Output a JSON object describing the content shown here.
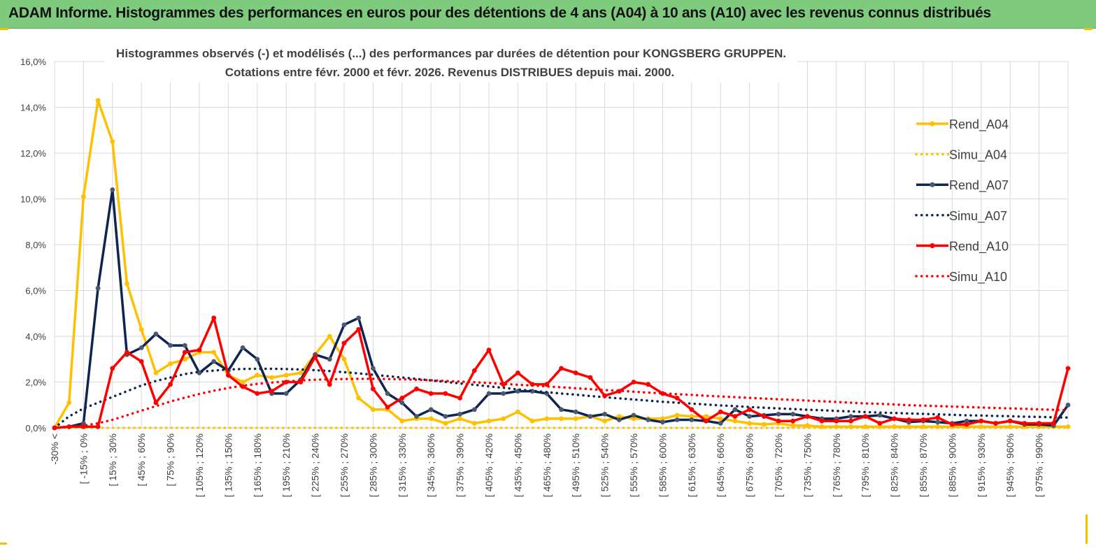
{
  "banner": {
    "title": "ADAM Informe. Histogrammes des performances en euros pour des détentions de 4 ans (A04) à 10 ans (A10) avec les revenus connus distribués"
  },
  "chart_data": {
    "type": "line",
    "title_line1": "Histogrammes observés (-) et modélisés (...) des performances par durées de détention pour KONGSBERG GRUPPEN.",
    "title_line2": "Cotations entre févr. 2000 et févr. 2026. Revenus DISTRIBUES depuis mai. 2000.",
    "xlabel": "",
    "ylabel": "",
    "ylim": [
      0,
      16
    ],
    "y_ticks": [
      "0,0%",
      "2,0%",
      "4,0%",
      "6,0%",
      "8,0%",
      "10,0%",
      "12,0%",
      "14,0%",
      "16,0%"
    ],
    "categories": [
      "-30% <",
      "[ -30% ; -15% [",
      "[ -15% ; 0% [",
      "[ 0% ; 15% [",
      "[ 15% ; 30% [",
      "[ 30% ; 45% [",
      "[ 45% ; 60% [",
      "[ 60% ; 75% [",
      "[ 75% ; 90% [",
      "[ 90% ; 105% [",
      "[ 105% ; 120% [",
      "[ 120% ; 135% [",
      "[ 135% ; 150% [",
      "[ 150% ; 165% [",
      "[ 165% ; 180% [",
      "[ 180% ; 195% [",
      "[ 195% ; 210% [",
      "[ 210% ; 225% [",
      "[ 225% ; 240% [",
      "[ 240% ; 255% [",
      "[ 255% ; 270% [",
      "[ 270% ; 285% [",
      "[ 285% ; 300% [",
      "[ 300% ; 315% [",
      "[ 315% ; 330% [",
      "[ 330% ; 345% [",
      "[ 345% ; 360% [",
      "[ 360% ; 375% [",
      "[ 375% ; 390% [",
      "[ 390% ; 405% [",
      "[ 405% ; 420% [",
      "[ 420% ; 435% [",
      "[ 435% ; 450% [",
      "[ 450% ; 465% [",
      "[ 465% ; 480% [",
      "[ 480% ; 495% [",
      "[ 495% ; 510% [",
      "[ 510% ; 525% [",
      "[ 525% ; 540% [",
      "[ 540% ; 555% [",
      "[ 555% ; 570% [",
      "[ 570% ; 585% [",
      "[ 585% ; 600% [",
      "[ 600% ; 615% [",
      "[ 615% ; 630% [",
      "[ 630% ; 645% [",
      "[ 645% ; 660% [",
      "[ 660% ; 675% [",
      "[ 675% ; 690% [",
      "[ 690% ; 705% [",
      "[ 705% ; 720% [",
      "[ 720% ; 735% [",
      "[ 735% ; 750% [",
      "[ 750% ; 765% [",
      "[ 765% ; 780% [",
      "[ 780% ; 795% [",
      "[ 795% ; 810% [",
      "[ 810% ; 825% [",
      "[ 825% ; 840% [",
      "[ 840% ; 855% [",
      "[ 855% ; 870% [",
      "[ 870% ; 885% [",
      "[ 885% ; 900% [",
      "[ 900% ; 915% [",
      "[ 915% ; 930% [",
      "[ 930% ; 945% [",
      "[ 945% ; 960% [",
      "[ 960% ; 975% [",
      "[ 975% ; 990% [",
      "[ 990% ; 1005% [",
      "> 1005%"
    ],
    "visible_tick_labels": [
      "-30% <",
      "[ -15% ; 0%",
      "[ 15% ; 30%",
      "[ 45% ; 60%",
      "[ 75% ; 90%",
      "[ 105% ; 120%",
      "[ 135% ; 150%",
      "[ 165% ; 180%",
      "[ 195% ; 210%",
      "[ 225% ; 240%",
      "[ 255% ; 270%",
      "[ 285% ; 300%",
      "[ 315% ; 330%",
      "[ 345% ; 360%",
      "[ 375% ; 390%",
      "[ 405% ; 420%",
      "[ 435% ; 450%",
      "[ 465% ; 480%",
      "[ 495% ; 510%",
      "[ 525% ; 540%",
      "[ 555% ; 570%",
      "[ 585% ; 600%",
      "[ 615% ; 630%",
      "[ 645% ; 660%",
      "[ 675% ; 690%",
      "[ 705% ; 720%",
      "[ 735% ; 750%",
      "[ 765% ; 780%",
      "[ 795% ; 810%",
      "[ 825% ; 840%",
      "[ 855% ; 870%",
      "[ 885% ; 900%",
      "[ 915% ; 930%",
      "[ 945% ; 960%",
      "[ 975% ; 990%"
    ],
    "series": [
      {
        "name": "Rend_A04",
        "style": "solid",
        "color": "#FFC000",
        "values": [
          0,
          1.1,
          10.1,
          14.3,
          12.5,
          6.3,
          4.3,
          2.4,
          2.8,
          3.0,
          3.3,
          3.3,
          2.3,
          2.0,
          2.3,
          2.2,
          2.3,
          2.4,
          3.2,
          4.0,
          3.0,
          1.3,
          0.8,
          0.8,
          0.3,
          0.4,
          0.4,
          0.2,
          0.4,
          0.2,
          0.3,
          0.4,
          0.7,
          0.3,
          0.4,
          0.4,
          0.4,
          0.5,
          0.3,
          0.5,
          0.4,
          0.4,
          0.4,
          0.55,
          0.5,
          0.5,
          0.4,
          0.3,
          0.2,
          0.15,
          0.2,
          0.1,
          0.1,
          0.05,
          0.05,
          0.05,
          0.05,
          0.05,
          0.05,
          0.05,
          0.05,
          0.05,
          0.05,
          0.05,
          0.05,
          0.05,
          0.05,
          0.05,
          0.05,
          0.05,
          0.05
        ]
      },
      {
        "name": "Simu_A04",
        "style": "dotted",
        "color": "#FFC000",
        "values": [
          0,
          0,
          0,
          0,
          0,
          0,
          0,
          0,
          0,
          0,
          0,
          0,
          0,
          0,
          0,
          0,
          0,
          0,
          0,
          0,
          0,
          0,
          0,
          0,
          0,
          0,
          0,
          0,
          0,
          0,
          0,
          0,
          0,
          0,
          0,
          0,
          0,
          0,
          0,
          0,
          0,
          0,
          0,
          0,
          0,
          0,
          0,
          0,
          0,
          0,
          0,
          0,
          0,
          0,
          0,
          0,
          0,
          0,
          0,
          0,
          0,
          0,
          0,
          0,
          0,
          0,
          0,
          0,
          0,
          0,
          0
        ]
      },
      {
        "name": "Rend_A07",
        "style": "solid",
        "color": "#0E2452",
        "values": [
          0,
          0.05,
          0.2,
          6.1,
          10.4,
          3.2,
          3.5,
          4.1,
          3.6,
          3.6,
          2.4,
          2.9,
          2.5,
          3.5,
          3.0,
          1.5,
          1.5,
          2.1,
          3.2,
          3.0,
          4.5,
          4.8,
          2.6,
          1.5,
          1.1,
          0.5,
          0.8,
          0.5,
          0.6,
          0.8,
          1.5,
          1.5,
          1.6,
          1.6,
          1.5,
          0.8,
          0.7,
          0.5,
          0.6,
          0.35,
          0.55,
          0.35,
          0.25,
          0.35,
          0.35,
          0.3,
          0.2,
          0.8,
          0.5,
          0.55,
          0.6,
          0.6,
          0.5,
          0.4,
          0.4,
          0.5,
          0.5,
          0.55,
          0.4,
          0.25,
          0.3,
          0.25,
          0.2,
          0.3,
          0.3,
          0.2,
          0.3,
          0.15,
          0.15,
          0.1,
          1.0
        ]
      },
      {
        "name": "Simu_A07",
        "style": "dotted",
        "color": "#0E2452",
        "values": [
          0,
          0.5,
          0.85,
          1.1,
          1.35,
          1.6,
          1.85,
          2.05,
          2.2,
          2.35,
          2.45,
          2.5,
          2.55,
          2.57,
          2.58,
          2.58,
          2.57,
          2.55,
          2.52,
          2.48,
          2.43,
          2.38,
          2.32,
          2.26,
          2.2,
          2.14,
          2.07,
          2.01,
          1.94,
          1.88,
          1.81,
          1.75,
          1.68,
          1.62,
          1.56,
          1.5,
          1.45,
          1.39,
          1.34,
          1.29,
          1.24,
          1.19,
          1.14,
          1.1,
          1.06,
          1.02,
          0.98,
          0.95,
          0.91,
          0.88,
          0.85,
          0.82,
          0.79,
          0.77,
          0.74,
          0.72,
          0.69,
          0.67,
          0.65,
          0.63,
          0.61,
          0.59,
          0.57,
          0.55,
          0.54,
          0.52,
          0.51,
          0.49,
          0.48,
          0.46,
          0.45
        ]
      },
      {
        "name": "Rend_A10",
        "style": "solid",
        "color": "#FF0000",
        "values": [
          0,
          0.05,
          0.05,
          0.05,
          2.6,
          3.3,
          2.9,
          1.1,
          1.9,
          3.3,
          3.4,
          4.8,
          2.3,
          1.8,
          1.5,
          1.6,
          2.0,
          2.0,
          3.1,
          1.9,
          3.7,
          4.3,
          1.7,
          0.9,
          1.3,
          1.7,
          1.5,
          1.5,
          1.3,
          2.5,
          3.4,
          1.9,
          2.4,
          1.9,
          1.9,
          2.6,
          2.4,
          2.2,
          1.4,
          1.6,
          2.0,
          1.9,
          1.5,
          1.3,
          0.8,
          0.3,
          0.7,
          0.5,
          0.8,
          0.5,
          0.3,
          0.3,
          0.5,
          0.3,
          0.3,
          0.3,
          0.5,
          0.2,
          0.4,
          0.35,
          0.35,
          0.45,
          0.15,
          0.15,
          0.3,
          0.2,
          0.3,
          0.2,
          0.2,
          0.2,
          2.6
        ]
      },
      {
        "name": "Simu_A10",
        "style": "dotted",
        "color": "#FF0000",
        "values": [
          0,
          0.05,
          0.1,
          0.2,
          0.35,
          0.55,
          0.75,
          0.95,
          1.15,
          1.32,
          1.48,
          1.62,
          1.74,
          1.84,
          1.92,
          1.98,
          2.03,
          2.07,
          2.1,
          2.12,
          2.13,
          2.14,
          2.14,
          2.13,
          2.12,
          2.1,
          2.08,
          2.05,
          2.02,
          1.99,
          1.96,
          1.92,
          1.88,
          1.85,
          1.81,
          1.77,
          1.73,
          1.69,
          1.65,
          1.62,
          1.58,
          1.54,
          1.51,
          1.47,
          1.44,
          1.4,
          1.37,
          1.34,
          1.31,
          1.28,
          1.25,
          1.22,
          1.19,
          1.16,
          1.13,
          1.1,
          1.07,
          1.05,
          1.02,
          0.99,
          0.97,
          0.95,
          0.93,
          0.91,
          0.89,
          0.87,
          0.85,
          0.83,
          0.81,
          0.79,
          0.77
        ]
      }
    ],
    "legend_position": "right"
  }
}
